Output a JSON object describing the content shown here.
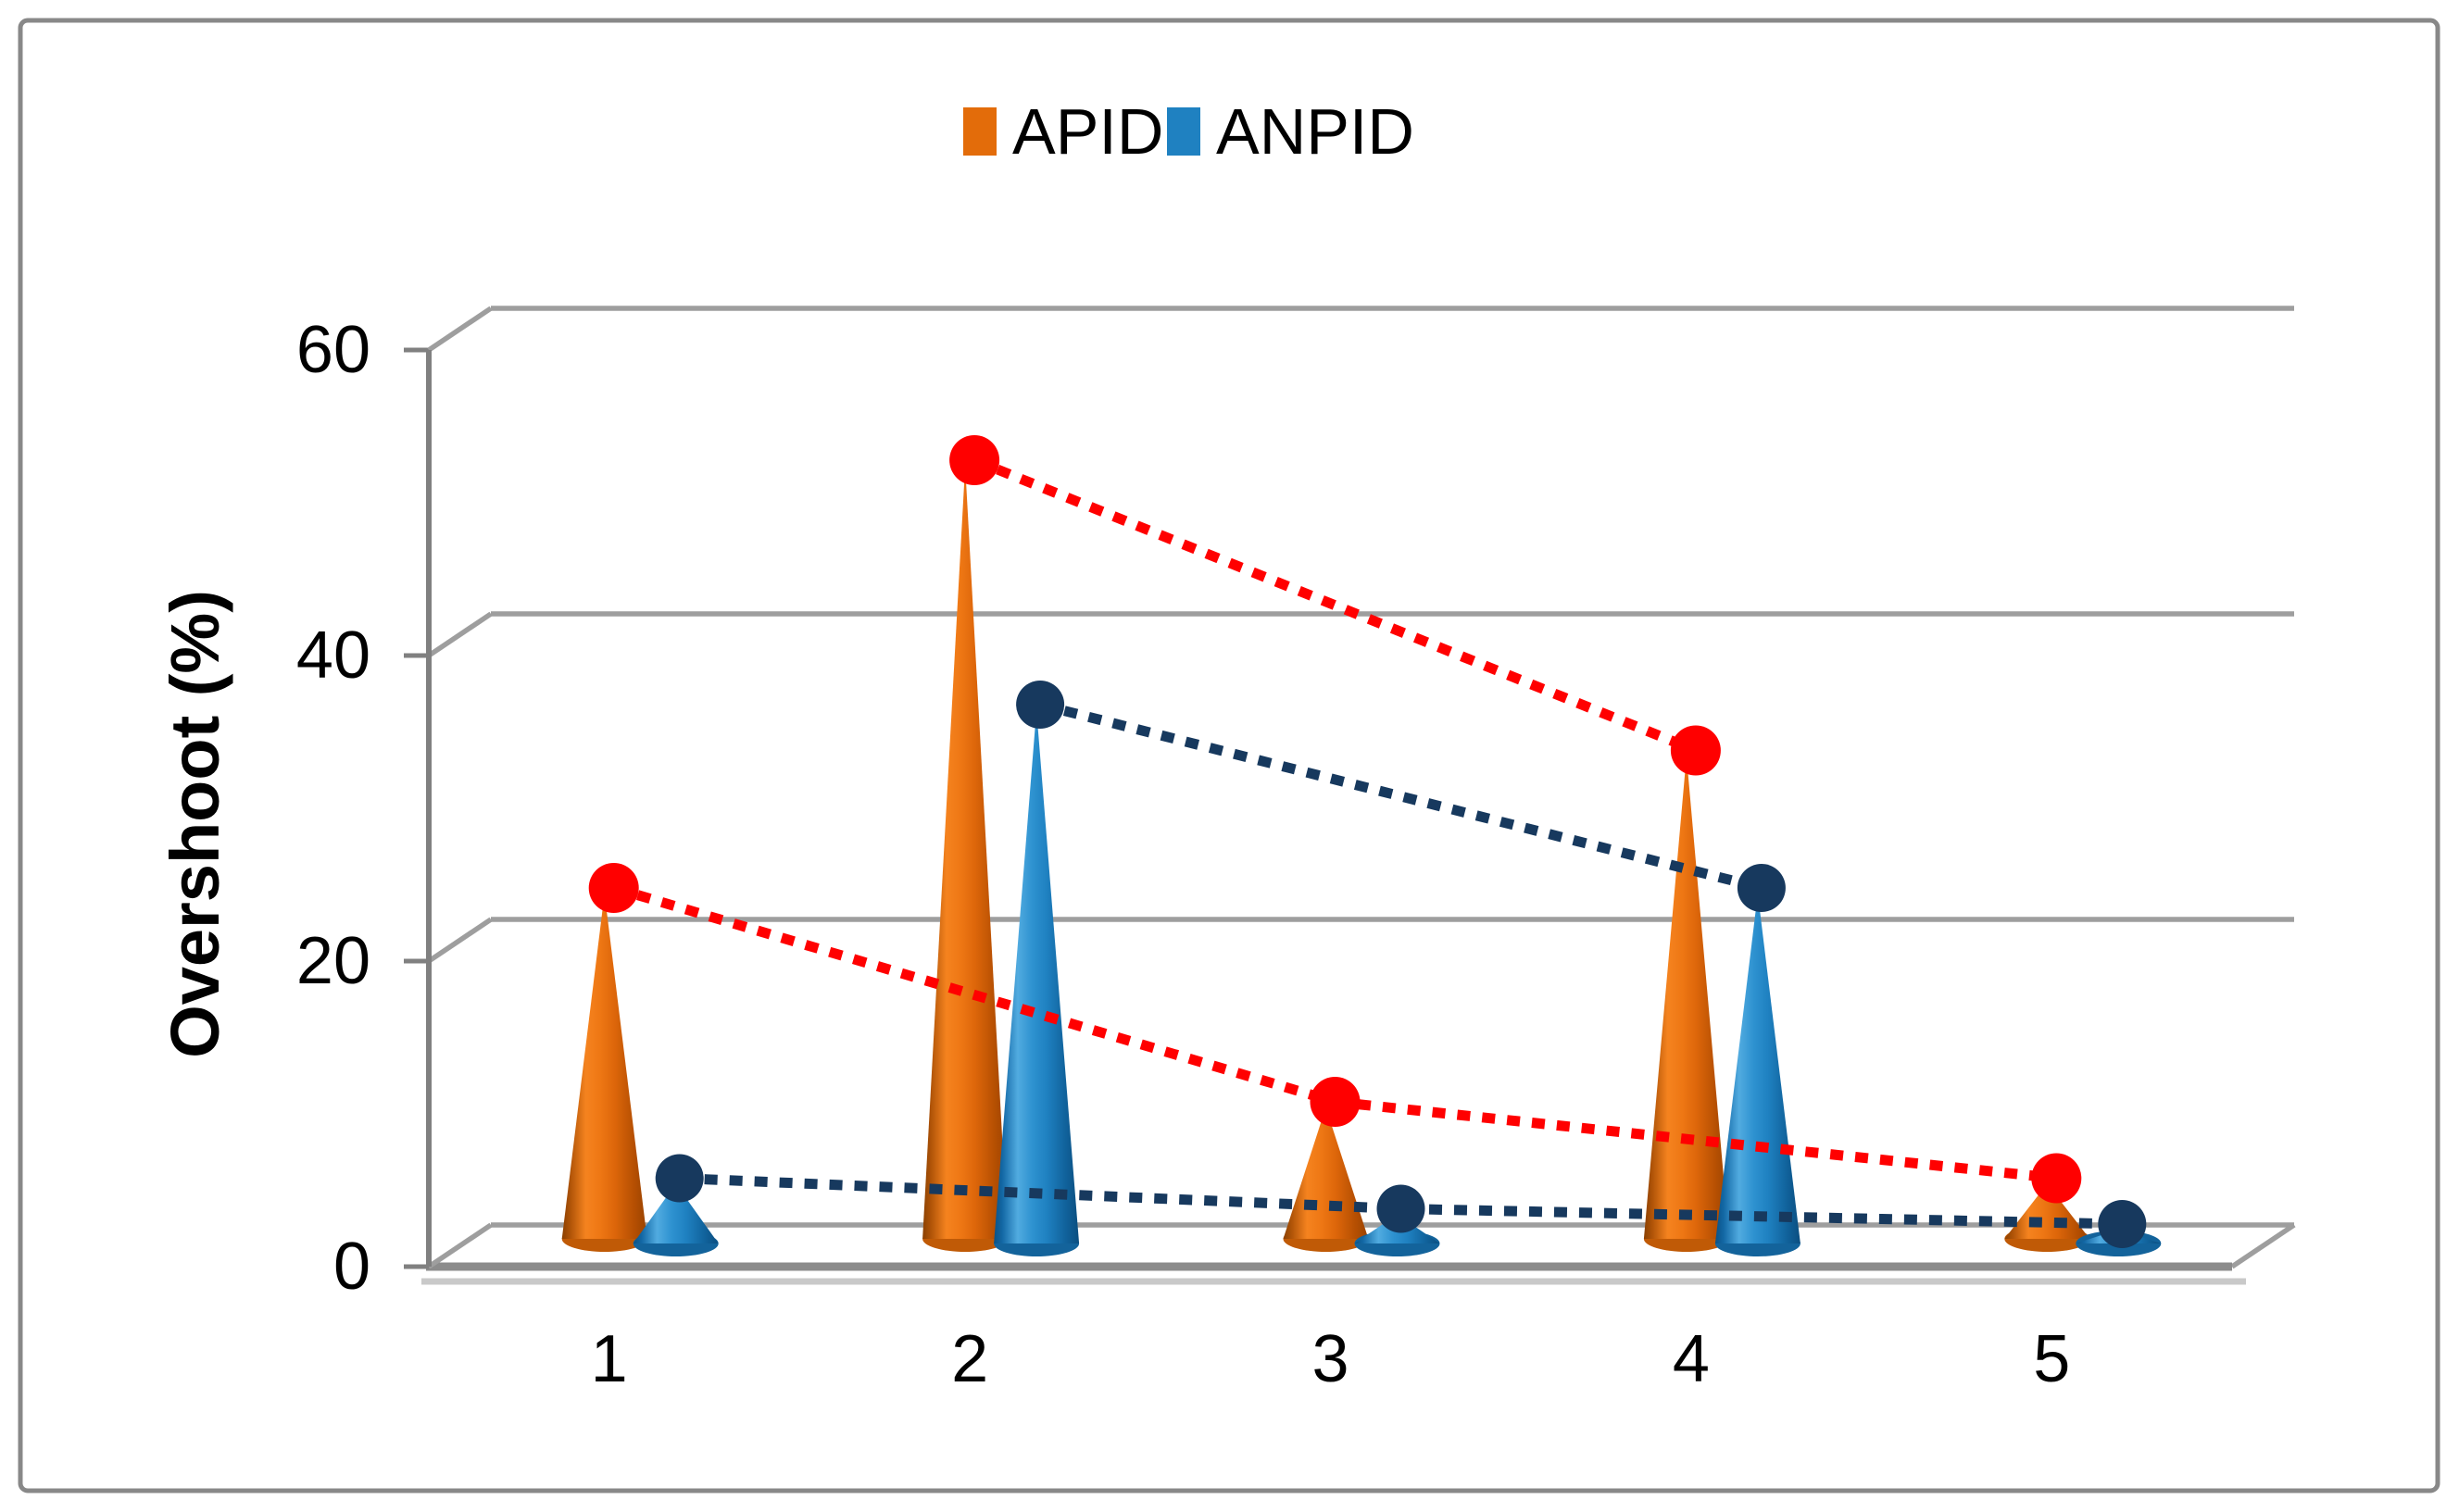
{
  "frame": {
    "border_color": "#888888",
    "background": "#FFFFFF"
  },
  "legend": {
    "items": [
      {
        "label": "APID",
        "color": "#E36C0A"
      },
      {
        "label": "ANPID",
        "color": "#1F81C1"
      }
    ]
  },
  "chart_data": {
    "type": "bar",
    "subtype": "3d-cone-columns-with-dotted-trend-lines",
    "title": "",
    "xlabel": "",
    "ylabel": "Overshoot (%)",
    "categories": [
      "1",
      "2",
      "3",
      "4",
      "5"
    ],
    "yticks": [
      0,
      20,
      40,
      60
    ],
    "ylim": [
      0,
      60
    ],
    "grid": true,
    "legend_position": "top-center",
    "series": [
      {
        "name": "APID",
        "cone_color": "#E36C0A",
        "marker_color": "#FF0000",
        "values": [
          24,
          52,
          10,
          33,
          5
        ]
      },
      {
        "name": "ANPID",
        "cone_color": "#1F81C1",
        "marker_color": "#17395E",
        "values": [
          5,
          36,
          3,
          24,
          2
        ]
      }
    ],
    "trend_lines": [
      {
        "series": "APID",
        "color": "#FF0000",
        "category_indexes": [
          0,
          2,
          4
        ]
      },
      {
        "series": "APID",
        "color": "#FF0000",
        "category_indexes": [
          1,
          3
        ]
      },
      {
        "series": "ANPID",
        "color": "#17395E",
        "category_indexes": [
          0,
          2,
          4
        ]
      },
      {
        "series": "ANPID",
        "color": "#17395E",
        "category_indexes": [
          1,
          3
        ]
      }
    ],
    "colors": {
      "gridline": "#9E9E9E",
      "axis": "#808080",
      "floor_shadow": "#C9C9C9",
      "text": "#000000"
    }
  }
}
